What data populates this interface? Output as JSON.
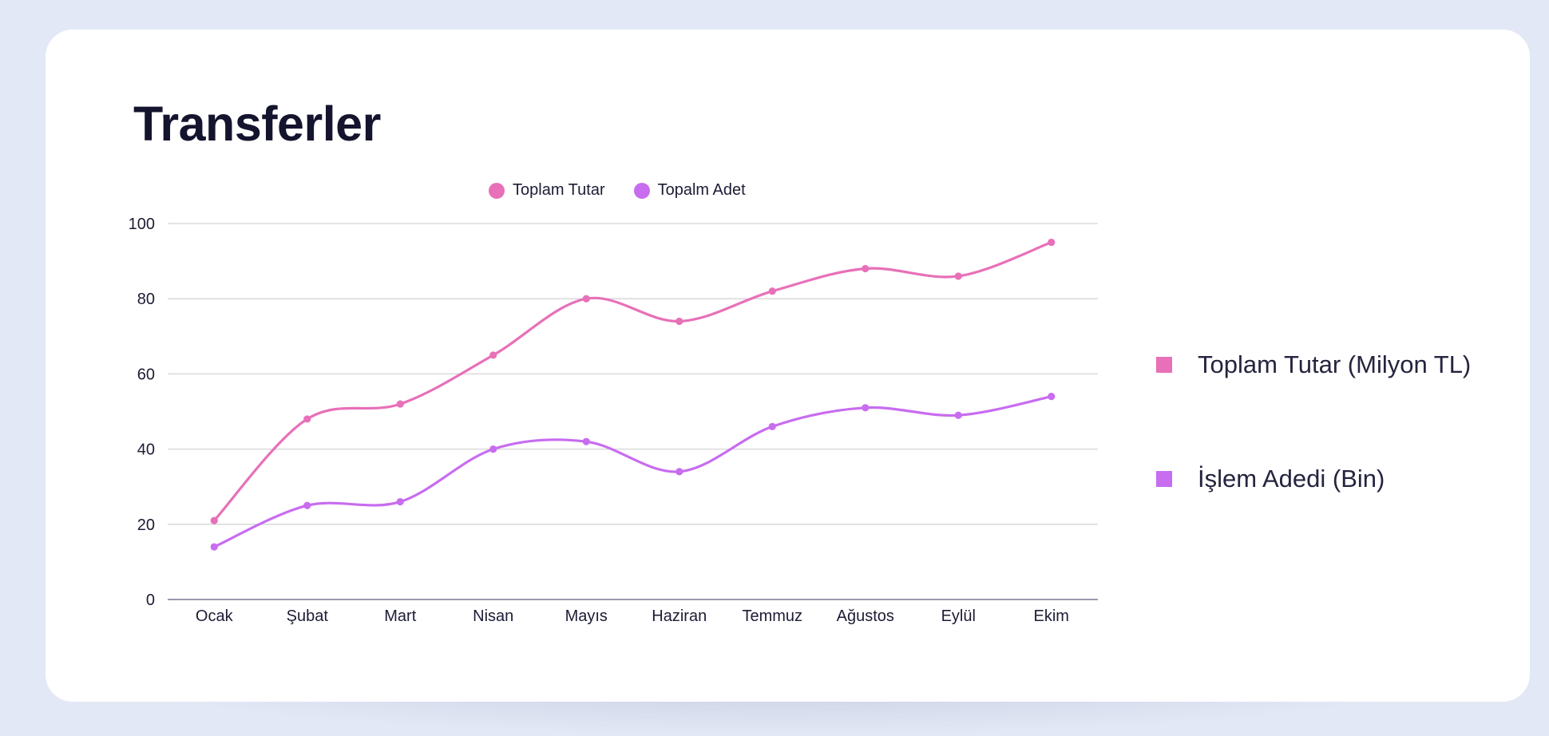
{
  "colors": {
    "pink": "#e870b8",
    "purple": "#c86cf0",
    "grid": "#d5d5d5",
    "axis": "#5a5a7a"
  },
  "chart_data": {
    "type": "line",
    "title": "Transferler",
    "categories": [
      "Ocak",
      "Şubat",
      "Mart",
      "Nisan",
      "Mayıs",
      "Haziran",
      "Temmuz",
      "Ağustos",
      "Eylül",
      "Ekim"
    ],
    "series": [
      {
        "name": "Toplam Tutar",
        "values": [
          21,
          48,
          52,
          65,
          80,
          74,
          82,
          88,
          86,
          95
        ]
      },
      {
        "name": "Topalm Adet",
        "values": [
          14,
          25,
          26,
          40,
          42,
          34,
          46,
          51,
          49,
          54
        ]
      }
    ],
    "yticks": [
      0,
      20,
      40,
      60,
      80,
      100
    ],
    "ylim": [
      0,
      100
    ],
    "xlabel": "",
    "ylabel": "",
    "grid": true,
    "legend_top": [
      "Toplam Tutar",
      "Topalm Adet"
    ],
    "legend_side": [
      "Toplam Tutar (Milyon TL)",
      "İşlem Adedi (Bin)"
    ]
  }
}
